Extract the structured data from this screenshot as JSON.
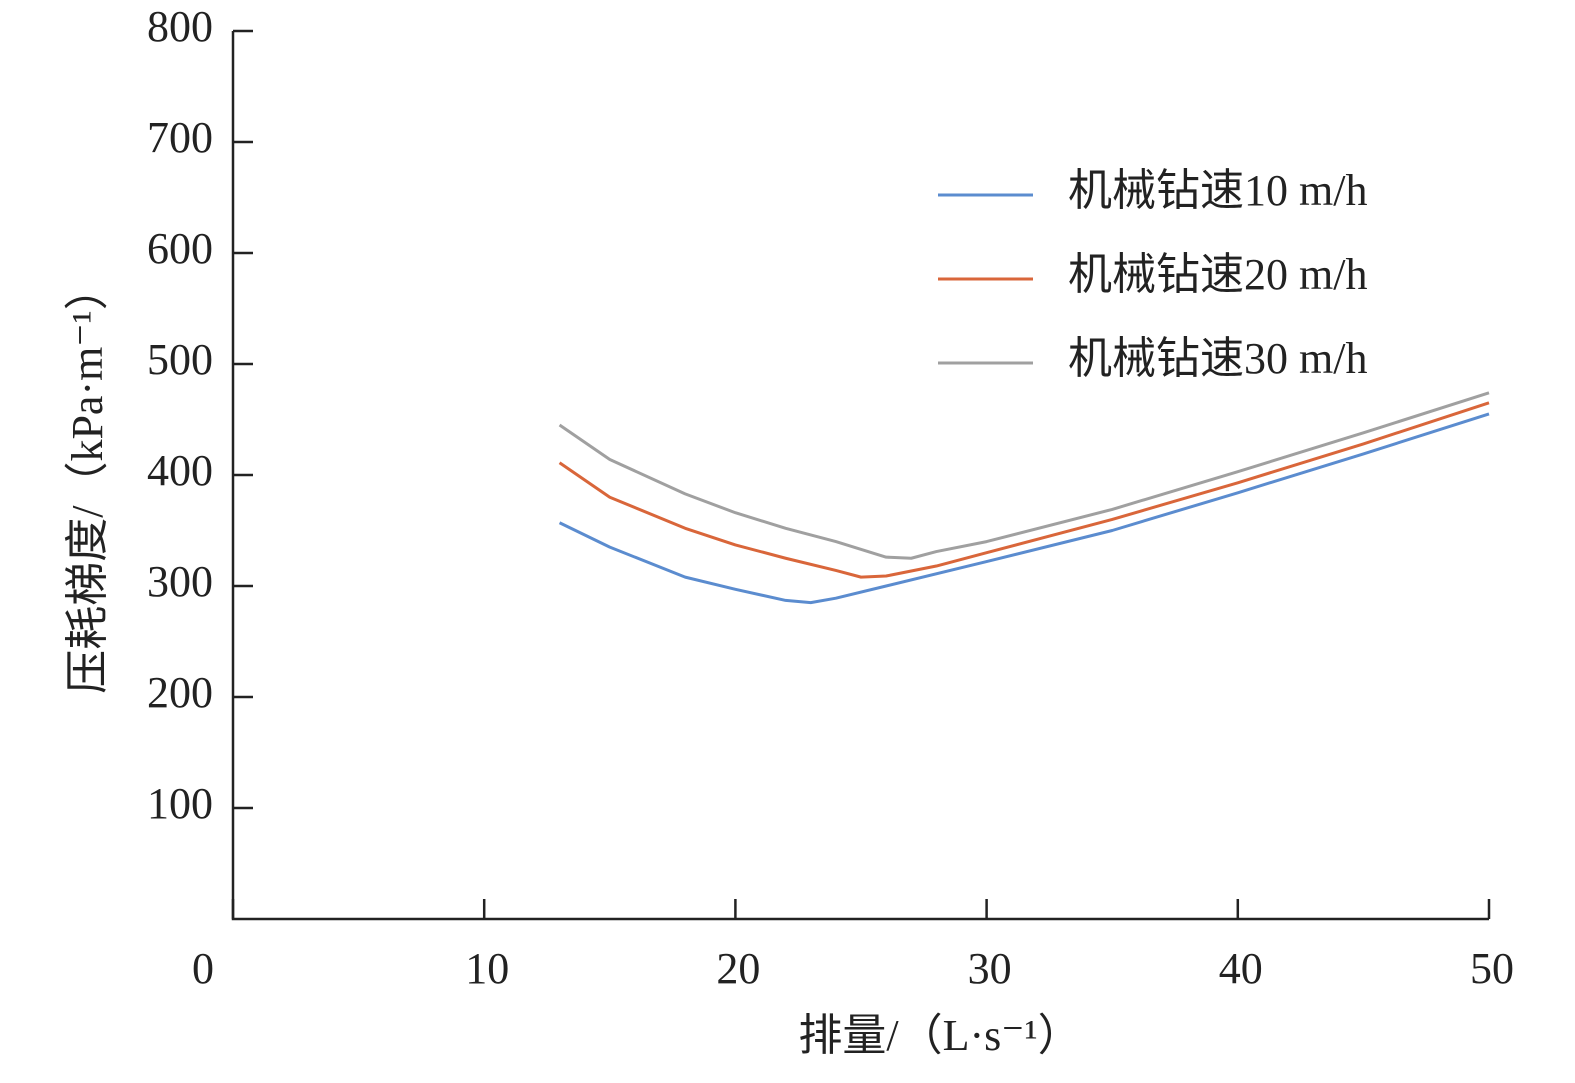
{
  "chart_data": {
    "type": "line",
    "x_label": "排量/（L·s⁻¹）",
    "y_label": "压耗梯度/（kPa·m⁻¹）",
    "xlim": [
      0,
      50
    ],
    "xticks": [
      0,
      10,
      20,
      30,
      40,
      50
    ],
    "ylim": [
      0,
      800
    ],
    "yticks": [
      100,
      200,
      300,
      400,
      500,
      600,
      700,
      800
    ],
    "legend": "upper right",
    "series": [
      {
        "name": "机械钻速10 m/h",
        "color": "#5b8ccf",
        "x": [
          13,
          15,
          18,
          20,
          22,
          23,
          24,
          26,
          30,
          35,
          40,
          45,
          50
        ],
        "values": [
          357,
          335,
          308,
          297,
          287,
          285,
          289,
          300,
          322,
          350,
          384,
          419,
          455
        ]
      },
      {
        "name": "机械钻速20 m/h",
        "color": "#d9663a",
        "x": [
          13,
          15,
          18,
          20,
          22,
          24,
          25,
          26,
          28,
          30,
          35,
          40,
          45,
          50
        ],
        "values": [
          411,
          380,
          352,
          337,
          325,
          314,
          308,
          309,
          318,
          330,
          360,
          393,
          428,
          465
        ]
      },
      {
        "name": "机械钻速30 m/h",
        "color": "#a0a0a0",
        "x": [
          13,
          15,
          18,
          20,
          22,
          24,
          26,
          27,
          28,
          30,
          35,
          40,
          45,
          50
        ],
        "values": [
          445,
          414,
          383,
          366,
          352,
          340,
          326,
          325,
          331,
          340,
          369,
          403,
          438,
          474
        ]
      }
    ]
  }
}
